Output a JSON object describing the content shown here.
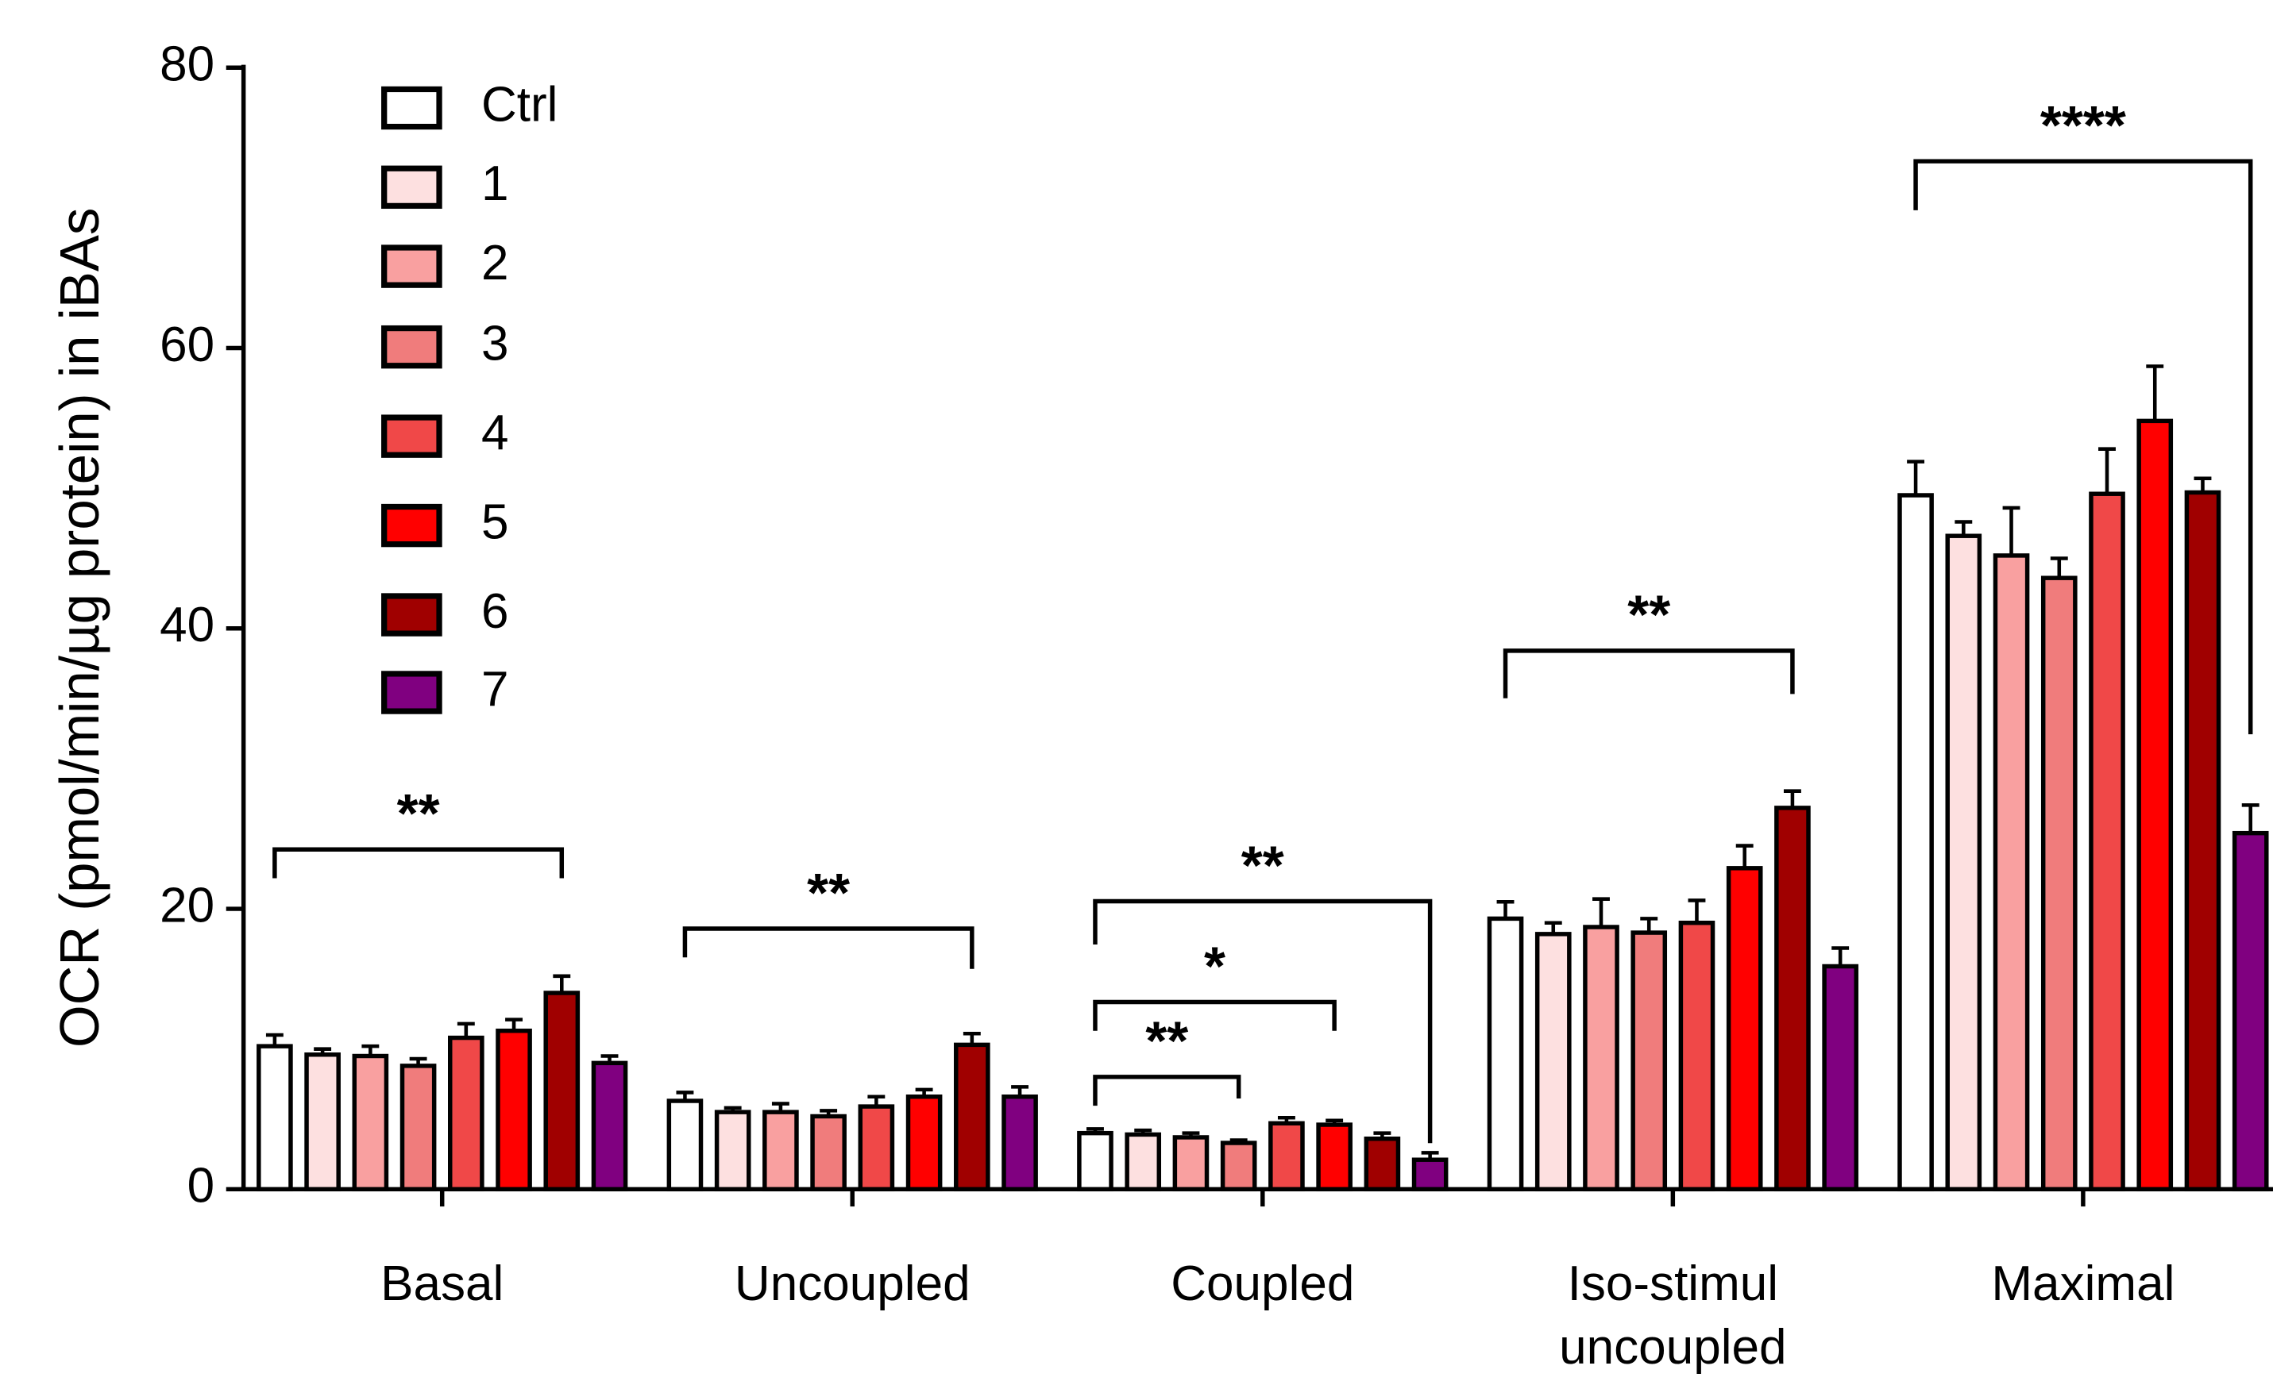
{
  "chart_data": {
    "type": "bar",
    "y_label": "OCR (pmol/min/µg protein) in iBAs",
    "categories": [
      "Basal",
      "Uncoupled",
      "Coupled",
      "Iso-stimul uncoupled",
      "Maximal"
    ],
    "ylim": [
      0,
      80
    ],
    "yticks": [
      0,
      20,
      40,
      60,
      80
    ],
    "series": [
      {
        "name": "Ctrl",
        "color": "#ffffff",
        "values": [
          10.2,
          6.3,
          4.0,
          19.3,
          49.5
        ],
        "errors": [
          0.8,
          0.6,
          0.3,
          1.2,
          2.4
        ]
      },
      {
        "name": "1",
        "color": "#fde0e0",
        "values": [
          9.6,
          5.5,
          3.9,
          18.2,
          46.6
        ],
        "errors": [
          0.4,
          0.3,
          0.3,
          0.8,
          1.0
        ]
      },
      {
        "name": "2",
        "color": "#f9a0a0",
        "values": [
          9.5,
          5.5,
          3.7,
          18.7,
          45.2
        ],
        "errors": [
          0.7,
          0.6,
          0.3,
          2.0,
          3.4
        ]
      },
      {
        "name": "3",
        "color": "#f07c7c",
        "values": [
          8.8,
          5.2,
          3.3,
          18.3,
          43.6
        ],
        "errors": [
          0.5,
          0.4,
          0.2,
          1.0,
          1.4
        ]
      },
      {
        "name": "4",
        "color": "#f04848",
        "values": [
          10.8,
          5.9,
          4.7,
          19.0,
          49.6
        ],
        "errors": [
          1.0,
          0.7,
          0.4,
          1.6,
          3.2
        ]
      },
      {
        "name": "5",
        "color": "#ff0000",
        "values": [
          11.3,
          6.6,
          4.6,
          22.9,
          54.8
        ],
        "errors": [
          0.8,
          0.5,
          0.3,
          1.6,
          3.9
        ]
      },
      {
        "name": "6",
        "color": "#a00000",
        "values": [
          14.0,
          10.3,
          3.6,
          27.2,
          49.7
        ],
        "errors": [
          1.2,
          0.8,
          0.4,
          1.2,
          1.0
        ]
      },
      {
        "name": "7",
        "color": "#800080",
        "values": [
          9.0,
          6.6,
          2.1,
          15.9,
          25.4
        ],
        "errors": [
          0.5,
          0.7,
          0.5,
          1.3,
          2.0
        ]
      }
    ],
    "annotations": [
      "**",
      "**",
      "**",
      "*",
      "**",
      "**",
      "****"
    ]
  }
}
